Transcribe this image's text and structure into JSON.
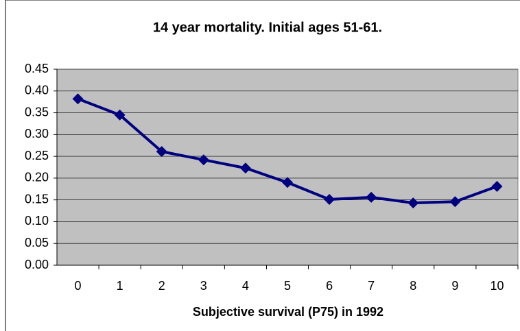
{
  "chart_data": {
    "type": "line",
    "title": "14 year mortality.  Initial ages 51-61.",
    "x_label": "Subjective survival (P75) in 1992",
    "categories": [
      "0",
      "1",
      "2",
      "3",
      "4",
      "5",
      "6",
      "7",
      "8",
      "9",
      "10"
    ],
    "series": [
      {
        "name": "14 year mortality",
        "color": "#000080",
        "values": [
          0.382,
          0.345,
          0.261,
          0.242,
          0.223,
          0.19,
          0.151,
          0.156,
          0.143,
          0.146,
          0.181
        ]
      }
    ],
    "ylim": [
      0,
      0.45
    ],
    "yticks": [
      {
        "value": 0,
        "label": "0.00"
      },
      0.05,
      {
        "value": 0.1,
        "label": "0.10"
      },
      0.15,
      {
        "value": 0.2,
        "label": "0.20"
      },
      0.25,
      {
        "value": 0.3,
        "label": "0.30"
      },
      0.35,
      {
        "value": 0.4,
        "label": "0.40"
      },
      0.45
    ],
    "grid": true
  }
}
